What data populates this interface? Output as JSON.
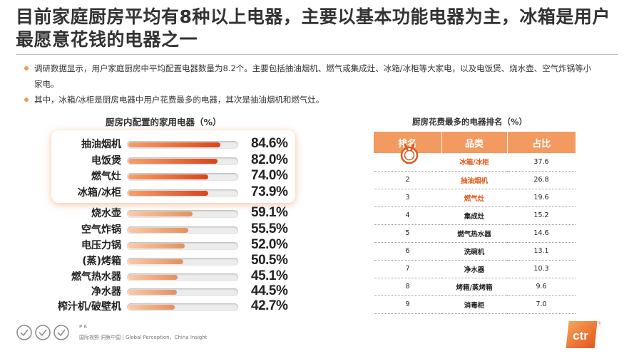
{
  "title": "目前家庭厨房平均有8种以上电器，主要以基本功能电器为主，冰箱是用户最愿意花钱的电器之一",
  "bullets": [
    "调研数据显示，用户家庭厨房中平均配置电器数量为8.2个。主要包括抽油烟机、燃气或集成灶、冰箱/冰柜等大家电，以及电饭煲、烧水壶、空气炸锅等小家电。",
    "其中，冰箱/冰柜是厨房电器中用户花费最多的电器，其次是抽油烟机和燃气灶。"
  ],
  "colors": {
    "accent": "#f29a60",
    "highlight_text": "#e05a1c",
    "bar_hot": "#d9441c",
    "bar_cool": "#e2915e"
  },
  "chart_data": [
    {
      "type": "bar",
      "title": "厨房内配置的家用电器（%）",
      "categories": [
        "抽油烟机",
        "电饭煲",
        "燃气灶",
        "冰箱/冰柜",
        "烧水壶",
        "空气炸锅",
        "电压力锅",
        "(蒸)烤箱",
        "燃气热水器",
        "净水器",
        "榨汁机/破壁机"
      ],
      "values": [
        84.6,
        82.0,
        74.0,
        73.9,
        59.1,
        55.5,
        52.0,
        50.5,
        45.1,
        44.5,
        42.7
      ],
      "value_labels": [
        "84.6%",
        "82.0%",
        "74.0%",
        "73.9%",
        "59.1%",
        "55.5%",
        "52.0%",
        "50.5%",
        "45.1%",
        "44.5%",
        "42.7%"
      ],
      "highlighted": [
        "抽油烟机",
        "电饭煲",
        "燃气灶",
        "冰箱/冰柜"
      ],
      "ylim": [
        0,
        100
      ]
    },
    {
      "type": "table",
      "title": "厨房花费最多的电器排名（%）",
      "columns": [
        "排名",
        "品类",
        "占比"
      ],
      "rows": [
        {
          "rank": "1",
          "category": "冰箱/冰柜",
          "share": "37.6",
          "highlight": true
        },
        {
          "rank": "2",
          "category": "抽油烟机",
          "share": "26.8",
          "highlight": true
        },
        {
          "rank": "3",
          "category": "燃气灶",
          "share": "19.6",
          "highlight": true
        },
        {
          "rank": "4",
          "category": "集成灶",
          "share": "15.2",
          "highlight": false
        },
        {
          "rank": "5",
          "category": "燃气热水器",
          "share": "14.6",
          "highlight": false
        },
        {
          "rank": "6",
          "category": "洗碗机",
          "share": "13.1",
          "highlight": false
        },
        {
          "rank": "7",
          "category": "净水器",
          "share": "10.3",
          "highlight": false
        },
        {
          "rank": "8",
          "category": "烤箱/蒸烤箱",
          "share": "9.6",
          "highlight": false
        },
        {
          "rank": "9",
          "category": "消毒柜",
          "share": "7.0",
          "highlight": false
        }
      ]
    }
  ],
  "footer": {
    "page": "P 6",
    "slogan": "国际视野 洞察中国 |  Global Perception，China Insight",
    "logo_text": "ctr",
    "registered": "®"
  }
}
